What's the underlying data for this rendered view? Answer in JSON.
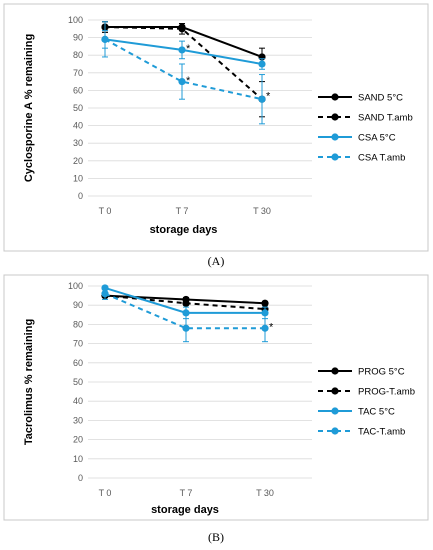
{
  "chart_data": [
    {
      "type": "line",
      "caption": "(A)",
      "xlabel": "storage days",
      "ylabel": "Cyclosporine A % remaining",
      "categories": [
        "T 0",
        "T 7",
        "T 30"
      ],
      "ylim": [
        0,
        100
      ],
      "yticks": [
        0,
        10,
        20,
        30,
        40,
        50,
        60,
        70,
        80,
        90,
        100
      ],
      "grid": true,
      "legend_position": "right",
      "series": [
        {
          "name": "SAND 5°C",
          "values": [
            96,
            96,
            79
          ],
          "errors": [
            3,
            2,
            5
          ],
          "color": "#000000",
          "dashed": false
        },
        {
          "name": "SAND T.amb",
          "values": [
            96,
            95,
            55
          ],
          "errors": [
            3,
            3,
            10
          ],
          "color": "#000000",
          "dashed": true
        },
        {
          "name": "CSA 5°C",
          "values": [
            89,
            83,
            75
          ],
          "errors": [
            10,
            5,
            3
          ],
          "color": "#1f9bd7",
          "dashed": false
        },
        {
          "name": "CSA T.amb",
          "values": [
            89,
            65,
            55
          ],
          "errors": [
            5,
            10,
            14
          ],
          "color": "#1f9bd7",
          "dashed": true
        }
      ],
      "annotations": [
        {
          "text": "*",
          "category": "T 7",
          "value": 84
        },
        {
          "text": "*",
          "category": "T 7",
          "value": 66
        },
        {
          "text": "*",
          "category": "T 30",
          "value": 57
        }
      ]
    },
    {
      "type": "line",
      "caption": "(B)",
      "xlabel": "storage days",
      "ylabel": "Tacrolimus % remaining",
      "categories": [
        "T 0",
        "T 7",
        "T 30"
      ],
      "ylim": [
        0,
        100
      ],
      "yticks": [
        0,
        10,
        20,
        30,
        40,
        50,
        60,
        70,
        80,
        90,
        100
      ],
      "grid": true,
      "legend_position": "right",
      "series": [
        {
          "name": "PROG 5°C",
          "values": [
            95,
            93,
            91
          ],
          "errors": [
            1,
            1,
            1
          ],
          "color": "#000000",
          "dashed": false
        },
        {
          "name": "PROG-T.amb",
          "values": [
            95,
            91,
            88
          ],
          "errors": [
            1,
            1,
            1
          ],
          "color": "#000000",
          "dashed": true
        },
        {
          "name": "TAC 5°C",
          "values": [
            99,
            86,
            86
          ],
          "errors": [
            1,
            3,
            3
          ],
          "color": "#1f9bd7",
          "dashed": false
        },
        {
          "name": "TAC-T.amb",
          "values": [
            96,
            78,
            78
          ],
          "errors": [
            3,
            7,
            7
          ],
          "color": "#1f9bd7",
          "dashed": true
        }
      ],
      "annotations": [
        {
          "text": "*",
          "category": "T 30",
          "value": 79
        }
      ]
    }
  ]
}
